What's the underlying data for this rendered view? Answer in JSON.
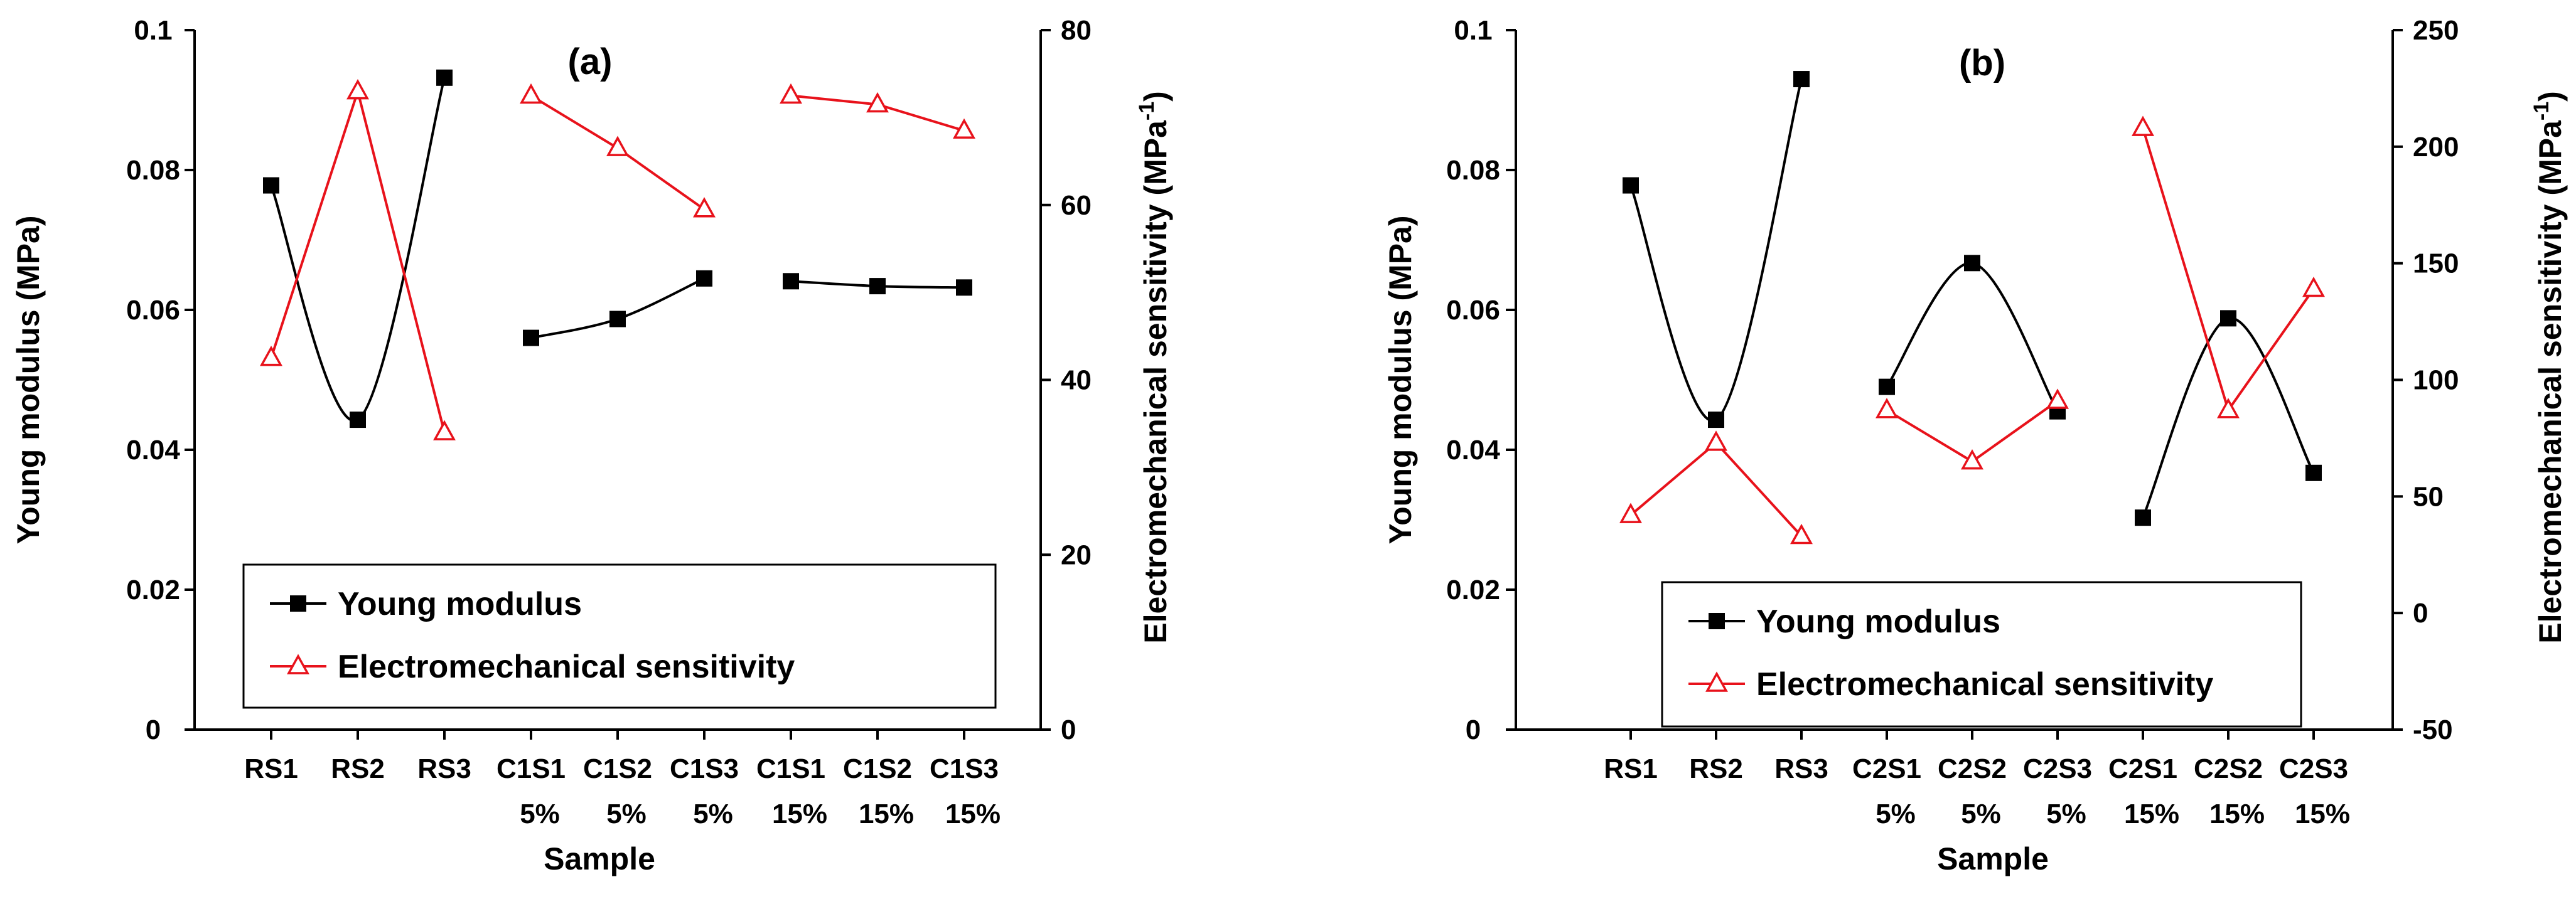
{
  "chart_data": [
    {
      "type": "line",
      "panel_label": "(a)",
      "xlabel": "Sample",
      "ylabel_left": "Young modulus (MPa)",
      "ylabel_right": "Electromechanical sensitivity (MPa",
      "ylabel_right_sup": "-1",
      "ylabel_right_close": ")",
      "categories": [
        [
          "RS1",
          ""
        ],
        [
          "RS2",
          ""
        ],
        [
          "RS3",
          ""
        ],
        [
          "C1S1",
          "5%"
        ],
        [
          "C1S2",
          "5%"
        ],
        [
          "C1S3",
          "5%"
        ],
        [
          "C1S1",
          "15%"
        ],
        [
          "C1S2",
          "15%"
        ],
        [
          "C1S3",
          "15%"
        ]
      ],
      "y_left": {
        "min": 0,
        "max": 0.1,
        "ticks": [
          "0",
          "0.02",
          "0.04",
          "0.06",
          "0.08",
          "0.1"
        ]
      },
      "y_right": {
        "min": 0,
        "max": 80,
        "ticks": [
          "0",
          "20",
          "40",
          "60",
          "80"
        ]
      },
      "groups": [
        [
          0,
          1,
          2
        ],
        [
          3,
          4,
          5
        ],
        [
          6,
          7,
          8
        ]
      ],
      "series": [
        {
          "name": "Young modulus",
          "axis": "left",
          "color": "#000000",
          "marker": "filled-square",
          "values": [
            0.0778,
            0.0443,
            0.0932,
            0.056,
            0.0587,
            0.0645,
            0.0641,
            0.0634,
            0.0632
          ]
        },
        {
          "name": "Electromechanical sensitivity",
          "axis": "right",
          "color": "#e8121b",
          "marker": "open-triangle",
          "values": [
            42.5,
            73,
            34,
            72.5,
            66.5,
            59.5,
            72.5,
            71.5,
            68.5
          ]
        }
      ],
      "legend": [
        "Young modulus",
        "Electromechanical sensitivity"
      ]
    },
    {
      "type": "line",
      "panel_label": "(b)",
      "xlabel": "Sample",
      "ylabel_left": "Young modulus (MPa)",
      "ylabel_right": "Electromechanical sensitivity (MPa",
      "ylabel_right_sup": "-1",
      "ylabel_right_close": ")",
      "categories": [
        [
          "RS1",
          ""
        ],
        [
          "RS2",
          ""
        ],
        [
          "RS3",
          ""
        ],
        [
          "C2S1",
          "5%"
        ],
        [
          "C2S2",
          "5%"
        ],
        [
          "C2S3",
          "5%"
        ],
        [
          "C2S1",
          "15%"
        ],
        [
          "C2S2",
          "15%"
        ],
        [
          "C2S3",
          "15%"
        ]
      ],
      "y_left": {
        "min": 0,
        "max": 0.1,
        "ticks": [
          "0",
          "0.02",
          "0.04",
          "0.06",
          "0.08",
          "0.1"
        ]
      },
      "y_right": {
        "min": -50,
        "max": 250,
        "ticks": [
          "-50",
          "0",
          "50",
          "100",
          "150",
          "200",
          "250"
        ]
      },
      "groups": [
        [
          0,
          1,
          2
        ],
        [
          3,
          4,
          5
        ],
        [
          6,
          7,
          8
        ]
      ],
      "series": [
        {
          "name": "Young modulus",
          "axis": "left",
          "color": "#000000",
          "marker": "filled-square",
          "values": [
            0.0778,
            0.0443,
            0.093,
            0.049,
            0.0667,
            0.0455,
            0.0303,
            0.0588,
            0.0367
          ]
        },
        {
          "name": "Electromechanical sensitivity",
          "axis": "right",
          "color": "#e8121b",
          "marker": "open-triangle",
          "values": [
            42,
            73,
            33,
            87,
            65,
            91,
            208,
            87,
            139
          ]
        }
      ],
      "legend": [
        "Young modulus",
        "Electromechanical sensitivity"
      ]
    }
  ]
}
